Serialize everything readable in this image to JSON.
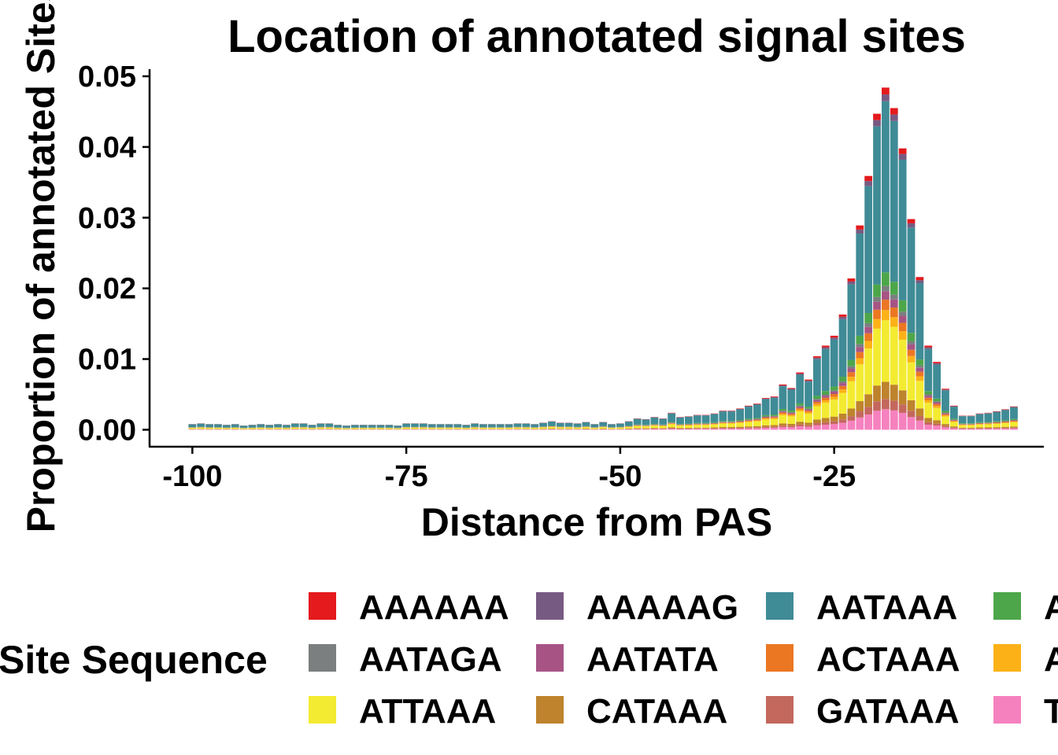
{
  "chart_data": {
    "type": "bar",
    "stacked": true,
    "title": "Location of annotated signal sites",
    "xlabel": "Distance from PAS",
    "ylabel": "Proportion of annotated Sites",
    "xlim": [
      -105,
      -0.5
    ],
    "ylim": [
      -0.0024,
      0.051
    ],
    "x_ticks": [
      -100,
      -75,
      -50,
      -25
    ],
    "x_tick_labels": [
      "-100",
      "-75",
      "-50",
      "-25"
    ],
    "y_ticks": [
      0,
      0.01,
      0.02,
      0.03,
      0.04,
      0.05
    ],
    "y_tick_labels": [
      "0.00",
      "0.01",
      "0.02",
      "0.03",
      "0.04",
      "0.05"
    ],
    "x": [
      -100,
      -99,
      -98,
      -97,
      -96,
      -95,
      -94,
      -93,
      -92,
      -91,
      -90,
      -89,
      -88,
      -87,
      -86,
      -85,
      -84,
      -83,
      -82,
      -81,
      -80,
      -79,
      -78,
      -77,
      -76,
      -75,
      -74,
      -73,
      -72,
      -71,
      -70,
      -69,
      -68,
      -67,
      -66,
      -65,
      -64,
      -63,
      -62,
      -61,
      -60,
      -59,
      -58,
      -57,
      -56,
      -55,
      -54,
      -53,
      -52,
      -51,
      -50,
      -49,
      -48,
      -47,
      -46,
      -45,
      -44,
      -43,
      -42,
      -41,
      -40,
      -39,
      -38,
      -37,
      -36,
      -35,
      -34,
      -33,
      -32,
      -31,
      -30,
      -29,
      -28,
      -27,
      -26,
      -25,
      -24,
      -23,
      -22,
      -21,
      -20,
      -19,
      -18,
      -17,
      -16,
      -15,
      -14,
      -13,
      -12,
      -11,
      -10,
      -9,
      -8,
      -7,
      -6,
      -5,
      -4
    ],
    "totals": [
      0.0008,
      0.0009,
      0.0008,
      0.0008,
      0.0007,
      0.0008,
      0.0006,
      0.0007,
      0.0008,
      0.0007,
      0.0008,
      0.0007,
      0.0009,
      0.0009,
      0.0007,
      0.0009,
      0.0009,
      0.0007,
      0.0006,
      0.0007,
      0.0007,
      0.0007,
      0.0007,
      0.0007,
      0.0006,
      0.0009,
      0.0009,
      0.0009,
      0.0008,
      0.0008,
      0.0008,
      0.0008,
      0.0007,
      0.0009,
      0.0008,
      0.0008,
      0.0008,
      0.0008,
      0.0009,
      0.0009,
      0.0008,
      0.001,
      0.0012,
      0.001,
      0.001,
      0.0009,
      0.0011,
      0.0008,
      0.0011,
      0.0008,
      0.0009,
      0.0012,
      0.0016,
      0.0015,
      0.0018,
      0.0016,
      0.0024,
      0.0018,
      0.0019,
      0.0021,
      0.0021,
      0.0023,
      0.0027,
      0.0027,
      0.003,
      0.0034,
      0.0037,
      0.0045,
      0.0047,
      0.0064,
      0.0059,
      0.0081,
      0.0071,
      0.0104,
      0.0119,
      0.0133,
      0.0163,
      0.0214,
      0.0289,
      0.0359,
      0.0447,
      0.0484,
      0.0455,
      0.0398,
      0.0298,
      0.0216,
      0.0119,
      0.0096,
      0.0058,
      0.0034,
      0.002,
      0.002,
      0.0023,
      0.0024,
      0.0026,
      0.0029,
      0.0033,
      0.0045
    ],
    "series": [
      {
        "name": "AAAAAA",
        "color": "#E41A1C",
        "fraction_of_total": 0.02
      },
      {
        "name": "AAAAAG",
        "color": "#775A82",
        "fraction_of_total": 0.02
      },
      {
        "name": "AATAAA",
        "color": "#3F8B96",
        "fraction_of_total": 0.5
      },
      {
        "name": "AGTAAA",
        "color": "#4DA64A",
        "fraction_of_total": 0.04
      },
      {
        "name": "AATAGA",
        "color": "#7B7F80",
        "fraction_of_total": 0.015
      },
      {
        "name": "AATATA",
        "color": "#A75485",
        "fraction_of_total": 0.025
      },
      {
        "name": "ACTAAA",
        "color": "#EB7723",
        "fraction_of_total": 0.03
      },
      {
        "name": "AAGAAA",
        "color": "#FCB217",
        "fraction_of_total": 0.03
      },
      {
        "name": "ATTAAA",
        "color": "#F3EB31",
        "fraction_of_total": 0.18
      },
      {
        "name": "CATAAA",
        "color": "#BE832C",
        "fraction_of_total": 0.05
      },
      {
        "name": "GATAAA",
        "color": "#C4685E",
        "fraction_of_total": 0.03
      },
      {
        "name": "TATAAA",
        "color": "#F681BF",
        "fraction_of_total": 0.06
      }
    ],
    "legend": {
      "title": "Site Sequence",
      "position": "bottom",
      "rows": [
        [
          "AAAAAA",
          "AAAAAG",
          "AATAAA",
          "AGTAAA"
        ],
        [
          "AATAGA",
          "AATATA",
          "ACTAAA",
          "AAGAAA"
        ],
        [
          "ATTAAA",
          "CATAAA",
          "GATAAA",
          "TATAAA"
        ]
      ]
    }
  }
}
